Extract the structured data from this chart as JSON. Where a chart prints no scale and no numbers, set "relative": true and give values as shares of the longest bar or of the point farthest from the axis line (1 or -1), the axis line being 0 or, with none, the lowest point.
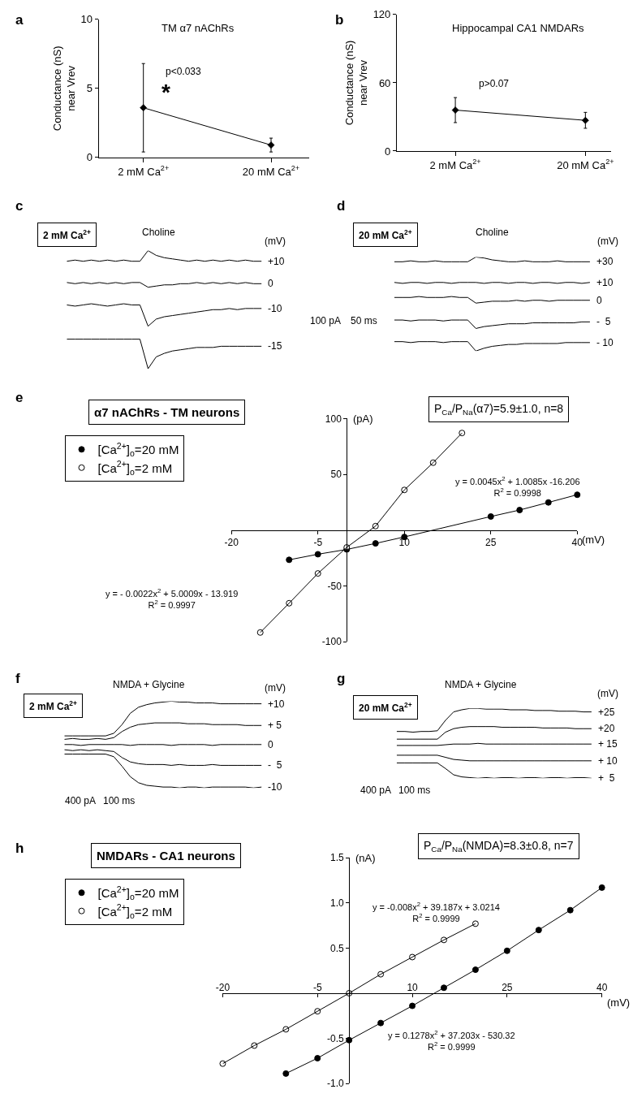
{
  "chart_data": [
    {
      "type": "line",
      "title": "TM α7 nAChRs",
      "ylabel": "Conductance (nS)\nnear Vrev",
      "categories": [
        "2 mM Ca$^{2+}$",
        "20 mM Ca$^{2+}$"
      ],
      "values": [
        3.6,
        0.9
      ],
      "errors": [
        3.2,
        0.5
      ],
      "color": "#000000",
      "marker": "diamond",
      "ylim": [
        0,
        10
      ],
      "yticks": [
        0,
        5,
        10
      ],
      "annotations": [
        "a",
        "p<0.033",
        "*"
      ]
    },
    {
      "type": "line",
      "title": "Hippocampal CA1 NMDARs",
      "ylabel": "Conductance (nS)\nnear Vrev",
      "categories": [
        "2 mM Ca$^{2+}$",
        "20 mM Ca$^{2+}$"
      ],
      "values": [
        36,
        27
      ],
      "errors": [
        11,
        7
      ],
      "color": "#000000",
      "marker": "diamond",
      "ylim": [
        0,
        120
      ],
      "yticks": [
        0,
        60,
        120
      ],
      "annotations": [
        "b",
        "p>0.07"
      ]
    },
    {
      "type": "line",
      "relative": true,
      "tick_labels": false,
      "title": "2 mM Ca$^{2+}$",
      "annotations": [
        "c",
        "Choline",
        "(mV)"
      ],
      "categories": [
        null,
        null,
        null,
        null,
        null,
        null,
        null,
        null,
        null,
        null,
        null,
        null,
        null,
        null,
        null,
        null,
        null,
        null,
        null,
        null,
        null,
        null,
        null,
        null,
        null
      ],
      "series": [
        {
          "name": "+10",
          "color": "#000000",
          "values": [
            0.91,
            0.92,
            0.91,
            0.92,
            0.91,
            0.92,
            0.91,
            0.92,
            0.91,
            0.91,
            1.0,
            0.96,
            0.94,
            0.93,
            0.92,
            0.91,
            0.92,
            0.91,
            0.92,
            0.91,
            0.92,
            0.91,
            0.92,
            0.91,
            0.91
          ]
        },
        {
          "name": "0",
          "color": "#000000",
          "values": [
            0.73,
            0.72,
            0.73,
            0.72,
            0.73,
            0.72,
            0.73,
            0.72,
            0.73,
            0.73,
            0.69,
            0.7,
            0.71,
            0.71,
            0.72,
            0.72,
            0.73,
            0.72,
            0.73,
            0.72,
            0.73,
            0.72,
            0.73,
            0.72,
            0.72
          ]
        },
        {
          "name": "-10",
          "color": "#000000",
          "values": [
            0.54,
            0.53,
            0.54,
            0.55,
            0.54,
            0.53,
            0.54,
            0.55,
            0.54,
            0.54,
            0.36,
            0.42,
            0.44,
            0.45,
            0.46,
            0.47,
            0.48,
            0.49,
            0.5,
            0.5,
            0.51,
            0.5,
            0.51,
            0.51,
            0.51
          ]
        },
        {
          "name": "-15",
          "color": "#000000",
          "values": [
            0.25,
            0.25,
            0.25,
            0.25,
            0.25,
            0.25,
            0.25,
            0.25,
            0.25,
            0.25,
            0.0,
            0.1,
            0.13,
            0.15,
            0.16,
            0.17,
            0.18,
            0.18,
            0.18,
            0.19,
            0.19,
            0.19,
            0.19,
            0.19,
            0.19
          ]
        }
      ]
    },
    {
      "type": "line",
      "relative": true,
      "tick_labels": false,
      "title": "20 mM Ca$^{2+}$",
      "annotations": [
        "d",
        "Choline",
        "(mV)",
        "100 pA",
        "50 ms"
      ],
      "categories": [
        null,
        null,
        null,
        null,
        null,
        null,
        null,
        null,
        null,
        null,
        null,
        null,
        null,
        null,
        null,
        null,
        null,
        null,
        null,
        null,
        null,
        null,
        null,
        null,
        null
      ],
      "series": [
        {
          "name": "+30",
          "color": "#000000",
          "values": [
            0.95,
            0.95,
            0.96,
            0.95,
            0.95,
            0.96,
            0.95,
            0.95,
            0.95,
            0.95,
            1.0,
            0.99,
            0.97,
            0.96,
            0.95,
            0.95,
            0.96,
            0.95,
            0.95,
            0.95,
            0.96,
            0.95,
            0.95,
            0.95,
            0.95
          ]
        },
        {
          "name": "+10",
          "color": "#000000",
          "values": [
            0.73,
            0.72,
            0.73,
            0.73,
            0.72,
            0.73,
            0.73,
            0.72,
            0.73,
            0.73,
            0.73,
            0.72,
            0.73,
            0.73,
            0.72,
            0.73,
            0.73,
            0.72,
            0.73,
            0.73,
            0.72,
            0.73,
            0.73,
            0.72,
            0.73
          ]
        },
        {
          "name": "0",
          "color": "#000000",
          "values": [
            0.57,
            0.57,
            0.57,
            0.58,
            0.57,
            0.57,
            0.57,
            0.58,
            0.57,
            0.57,
            0.51,
            0.52,
            0.53,
            0.53,
            0.53,
            0.54,
            0.53,
            0.54,
            0.54,
            0.53,
            0.54,
            0.54,
            0.54,
            0.54,
            0.54
          ]
        },
        {
          "name": "-  5",
          "color": "#000000",
          "values": [
            0.33,
            0.33,
            0.32,
            0.33,
            0.33,
            0.33,
            0.32,
            0.33,
            0.33,
            0.33,
            0.24,
            0.26,
            0.27,
            0.28,
            0.29,
            0.29,
            0.29,
            0.3,
            0.3,
            0.3,
            0.3,
            0.3,
            0.3,
            0.31,
            0.31
          ]
        },
        {
          "name": "- 10",
          "color": "#000000",
          "values": [
            0.1,
            0.1,
            0.09,
            0.1,
            0.1,
            0.1,
            0.09,
            0.1,
            0.1,
            0.1,
            0.0,
            0.03,
            0.05,
            0.06,
            0.07,
            0.07,
            0.08,
            0.08,
            0.08,
            0.08,
            0.08,
            0.09,
            0.09,
            0.09,
            0.09
          ]
        }
      ]
    },
    {
      "type": "scatter",
      "title": "α7 nAChRs - TM neurons",
      "xlabel": "(mV)",
      "ylabel": "(pA)",
      "marker": "circle",
      "legend": "top left",
      "xlim": [
        -20,
        40
      ],
      "xticks": [
        -20,
        -5,
        10,
        25,
        40
      ],
      "ylim": [
        -100,
        100
      ],
      "yticks": [
        -100,
        -50,
        50,
        100
      ],
      "annotations": [
        "e",
        "P$_{Ca}$/P$_{Na}$(α7)=5.9±1.0, n=8",
        "y = 0.0045x$^{2}$ + 1.0085x -16.206\nR$^{2}$ = 0.9998",
        "y = - 0.0022x$^{2}$ + 5.0009x - 13.919\nR$^{2}$ = 0.9997"
      ],
      "series": [
        {
          "name": "[Ca$^{2+}$]$_{o}$=20 mM",
          "type": "scatter",
          "color": "#000000",
          "x": [
            -10,
            -5,
            0,
            5,
            10,
            25,
            30,
            35,
            40
          ],
          "values": [
            -26.6,
            -21.6,
            -17.3,
            -11.9,
            -6.1,
            12.2,
            18,
            24.8,
            31.7
          ]
        },
        {
          "name": "[Ca$^{2+}$]$_{o}$=2 mM",
          "type": "scatter",
          "color": "#ffffff",
          "x": [
            -15,
            -10,
            -5,
            0,
            5,
            10,
            15,
            20
          ],
          "values": [
            -91.7,
            -65.5,
            -38.8,
            -15.5,
            3.6,
            36,
            60.4,
            87
          ]
        },
        {
          "type": "line",
          "marker": "none",
          "color": "#000000",
          "x": [
            -10,
            -5,
            0,
            5,
            10,
            25,
            30,
            35,
            40
          ],
          "values": [
            -26.6,
            -21.6,
            -17.3,
            -11.9,
            -6.1,
            12.2,
            18,
            24.8,
            31.7
          ]
        },
        {
          "type": "line",
          "marker": "none",
          "color": "#000000",
          "x": [
            -15,
            -10,
            -5,
            0,
            5,
            10,
            15,
            20
          ],
          "values": [
            -91.7,
            -65.5,
            -38.8,
            -15.5,
            3.6,
            36,
            60.4,
            87
          ]
        }
      ]
    },
    {
      "type": "line",
      "relative": true,
      "tick_labels": false,
      "title": "2 mM Ca$^{2+}$",
      "annotations": [
        "f",
        "NMDA + Glycine",
        "(mV)",
        "400 pA",
        "100 ms"
      ],
      "categories": [
        null,
        null,
        null,
        null,
        null,
        null,
        null,
        null,
        null,
        null,
        null,
        null,
        null,
        null,
        null,
        null,
        null,
        null,
        null,
        null,
        null,
        null,
        null,
        null,
        null
      ],
      "series": [
        {
          "name": "+10",
          "color": "#000000",
          "values": [
            0.6,
            0.6,
            0.6,
            0.6,
            0.6,
            0.6,
            0.63,
            0.73,
            0.86,
            0.93,
            0.96,
            0.98,
            0.99,
            1.0,
            0.99,
            0.99,
            0.98,
            0.98,
            0.98,
            0.97,
            0.97,
            0.97,
            0.97,
            0.97,
            0.97
          ]
        },
        {
          "name": "+ 5",
          "color": "#000000",
          "values": [
            0.56,
            0.57,
            0.56,
            0.56,
            0.57,
            0.56,
            0.58,
            0.65,
            0.7,
            0.73,
            0.74,
            0.75,
            0.75,
            0.75,
            0.75,
            0.74,
            0.74,
            0.74,
            0.73,
            0.73,
            0.73,
            0.73,
            0.72,
            0.72,
            0.72
          ]
        },
        {
          "name": "0",
          "color": "#000000",
          "values": [
            0.5,
            0.5,
            0.49,
            0.5,
            0.5,
            0.5,
            0.5,
            0.5,
            0.49,
            0.5,
            0.5,
            0.5,
            0.5,
            0.49,
            0.5,
            0.5,
            0.5,
            0.5,
            0.49,
            0.5,
            0.5,
            0.5,
            0.5,
            0.5,
            0.5
          ]
        },
        {
          "name": "-  5",
          "color": "#000000",
          "values": [
            0.44,
            0.43,
            0.44,
            0.43,
            0.44,
            0.43,
            0.42,
            0.35,
            0.3,
            0.28,
            0.27,
            0.27,
            0.27,
            0.26,
            0.27,
            0.26,
            0.26,
            0.26,
            0.27,
            0.26,
            0.26,
            0.26,
            0.26,
            0.26,
            0.26
          ]
        },
        {
          "name": "-10",
          "color": "#000000",
          "values": [
            0.39,
            0.39,
            0.39,
            0.39,
            0.39,
            0.39,
            0.36,
            0.25,
            0.13,
            0.06,
            0.03,
            0.02,
            0.01,
            0.01,
            0.0,
            0.01,
            0.01,
            0.0,
            0.01,
            0.01,
            0.01,
            0.01,
            0.01,
            0.0,
            0.01
          ]
        }
      ]
    },
    {
      "type": "line",
      "relative": true,
      "tick_labels": false,
      "title": "20 mM Ca$^{2+}$",
      "annotations": [
        "g",
        "NMDA + Glycine",
        "(mV)",
        "400 pA",
        "100 ms"
      ],
      "categories": [
        null,
        null,
        null,
        null,
        null,
        null,
        null,
        null,
        null,
        null,
        null,
        null,
        null,
        null,
        null,
        null,
        null,
        null,
        null,
        null,
        null,
        null,
        null,
        null,
        null
      ],
      "series": [
        {
          "name": "+25",
          "color": "#000000",
          "values": [
            0.67,
            0.67,
            0.66,
            0.67,
            0.67,
            0.68,
            0.83,
            0.95,
            0.98,
            1.0,
            1.0,
            0.99,
            0.99,
            0.99,
            0.98,
            0.98,
            0.98,
            0.97,
            0.97,
            0.97,
            0.96,
            0.96,
            0.96,
            0.95,
            0.95
          ]
        },
        {
          "name": "+20",
          "color": "#000000",
          "values": [
            0.56,
            0.56,
            0.56,
            0.56,
            0.56,
            0.56,
            0.66,
            0.71,
            0.73,
            0.74,
            0.74,
            0.74,
            0.74,
            0.73,
            0.73,
            0.73,
            0.73,
            0.73,
            0.72,
            0.72,
            0.72,
            0.72,
            0.71,
            0.71,
            0.71
          ]
        },
        {
          "name": "+ 15",
          "color": "#000000",
          "values": [
            0.47,
            0.47,
            0.47,
            0.47,
            0.47,
            0.47,
            0.48,
            0.49,
            0.49,
            0.49,
            0.5,
            0.49,
            0.49,
            0.49,
            0.49,
            0.49,
            0.49,
            0.49,
            0.49,
            0.49,
            0.49,
            0.49,
            0.49,
            0.49,
            0.49
          ]
        },
        {
          "name": "+ 10",
          "color": "#000000",
          "values": [
            0.33,
            0.33,
            0.33,
            0.33,
            0.33,
            0.33,
            0.3,
            0.27,
            0.26,
            0.25,
            0.25,
            0.25,
            0.25,
            0.25,
            0.25,
            0.25,
            0.25,
            0.25,
            0.25,
            0.25,
            0.25,
            0.25,
            0.25,
            0.25,
            0.25
          ]
        },
        {
          "name": "+  5",
          "color": "#000000",
          "values": [
            0.22,
            0.22,
            0.22,
            0.22,
            0.22,
            0.22,
            0.14,
            0.05,
            0.02,
            0.01,
            0.0,
            0.01,
            0.0,
            0.01,
            0.01,
            0.0,
            0.01,
            0.01,
            0.0,
            0.01,
            0.01,
            0.0,
            0.01,
            0.01,
            0.0
          ]
        }
      ]
    },
    {
      "type": "scatter",
      "title": "NMDARs - CA1 neurons",
      "xlabel": "(mV)",
      "ylabel": "(nA)",
      "marker": "circle",
      "legend": "top left",
      "xlim": [
        -20,
        40
      ],
      "xticks": [
        -20,
        -5,
        10,
        25,
        40
      ],
      "ylim": [
        -1.0,
        1.5
      ],
      "yticks": [
        {
          "value": -1.0,
          "label": "-1.0"
        },
        -0.5,
        0.5,
        {
          "value": 1.0,
          "label": "1.0"
        },
        1.5
      ],
      "annotations": [
        "h",
        "P$_{Ca}$/P$_{Na}$(NMDA)=8.3±0.8, n=7",
        "y = -0.008x$^{2}$ + 39.187x + 3.0214\nR$^{2}$ = 0.9999",
        "y = 0.1278x$^{2}$ + 37.203x - 530.32\nR$^{2}$ = 0.9999"
      ],
      "series": [
        {
          "name": "[Ca$^{2+}$]$_{o}$=20 mM",
          "type": "scatter",
          "color": "#000000",
          "x": [
            -10,
            -5,
            0,
            5,
            10,
            15,
            20,
            25,
            30,
            35,
            40
          ],
          "values": [
            -0.89,
            -0.72,
            -0.52,
            -0.33,
            -0.14,
            0.06,
            0.26,
            0.47,
            0.7,
            0.92,
            1.17
          ]
        },
        {
          "name": "[Ca$^{2+}$]$_{o}$=2 mM",
          "type": "scatter",
          "color": "#ffffff",
          "x": [
            -20,
            -15,
            -10,
            -5,
            0,
            5,
            10,
            15,
            20
          ],
          "values": [
            -0.78,
            -0.58,
            -0.4,
            -0.2,
            0.0,
            0.21,
            0.4,
            0.59,
            0.77
          ]
        },
        {
          "type": "line",
          "marker": "none",
          "color": "#000000",
          "x": [
            -10,
            -5,
            0,
            5,
            10,
            15,
            20,
            25,
            30,
            35,
            40
          ],
          "values": [
            -0.89,
            -0.72,
            -0.52,
            -0.33,
            -0.14,
            0.06,
            0.26,
            0.47,
            0.7,
            0.92,
            1.17
          ]
        },
        {
          "type": "line",
          "marker": "none",
          "color": "#000000",
          "x": [
            -20,
            -15,
            -10,
            -5,
            0,
            5,
            10,
            15,
            20
          ],
          "values": [
            -0.78,
            -0.58,
            -0.4,
            -0.2,
            0.0,
            0.21,
            0.4,
            0.59,
            0.77
          ]
        }
      ]
    }
  ]
}
